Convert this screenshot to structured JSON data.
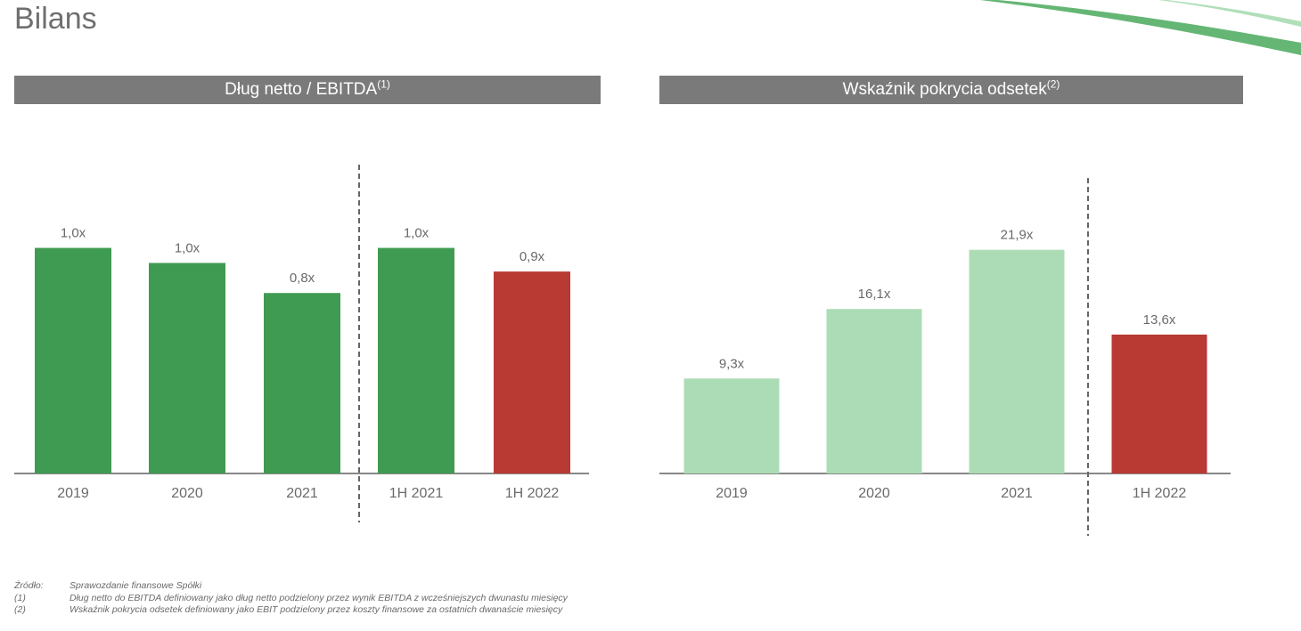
{
  "page": {
    "title": "Bilans",
    "logo_text": ""
  },
  "colors": {
    "header_bg": "#7a7a7a",
    "green_dark": "#3f9a52",
    "green_light": "#acdcb5",
    "red": "#b83a33",
    "axis": "#888888"
  },
  "chart_data": [
    {
      "type": "bar",
      "title": "Dług netto / EBITDA",
      "title_note": "(1)",
      "categories": [
        "2019",
        "2020",
        "2021",
        "1H 2021",
        "1H 2022"
      ],
      "values": [
        1.05,
        0.98,
        0.84,
        1.05,
        0.94
      ],
      "labels": [
        "1,0x",
        "1,0x",
        "0,8x",
        "1,0x",
        "0,9x"
      ],
      "bar_colors": [
        "#3f9a52",
        "#3f9a52",
        "#3f9a52",
        "#3f9a52",
        "#b83a33"
      ],
      "separator_after_index": 2,
      "ylim": [
        0,
        1.45
      ],
      "grid": false
    },
    {
      "type": "bar",
      "title": "Wskaźnik pokrycia odsetek",
      "title_note": "(2)",
      "categories": [
        "2019",
        "2020",
        "2021",
        "1H 2022"
      ],
      "values": [
        9.3,
        16.1,
        21.9,
        13.6
      ],
      "labels": [
        "9,3x",
        "16,1x",
        "21,9x",
        "13,6x"
      ],
      "bar_colors": [
        "#acdcb5",
        "#acdcb5",
        "#acdcb5",
        "#b83a33"
      ],
      "separator_after_index": 2,
      "ylim": [
        0,
        30.5
      ],
      "grid": false
    }
  ],
  "footnotes": [
    {
      "label": "Źródło:",
      "text": "Sprawozdanie finansowe Spółki"
    },
    {
      "label": "(1)",
      "text": "Dług netto do EBITDA definiowany jako dług netto podzielony przez wynik EBITDA z wcześniejszych dwunastu miesięcy"
    },
    {
      "label": "(2)",
      "text": "Wskaźnik pokrycia odsetek definiowany jako EBIT podzielony przez koszty finansowe za ostatnich dwanaście miesięcy"
    }
  ]
}
